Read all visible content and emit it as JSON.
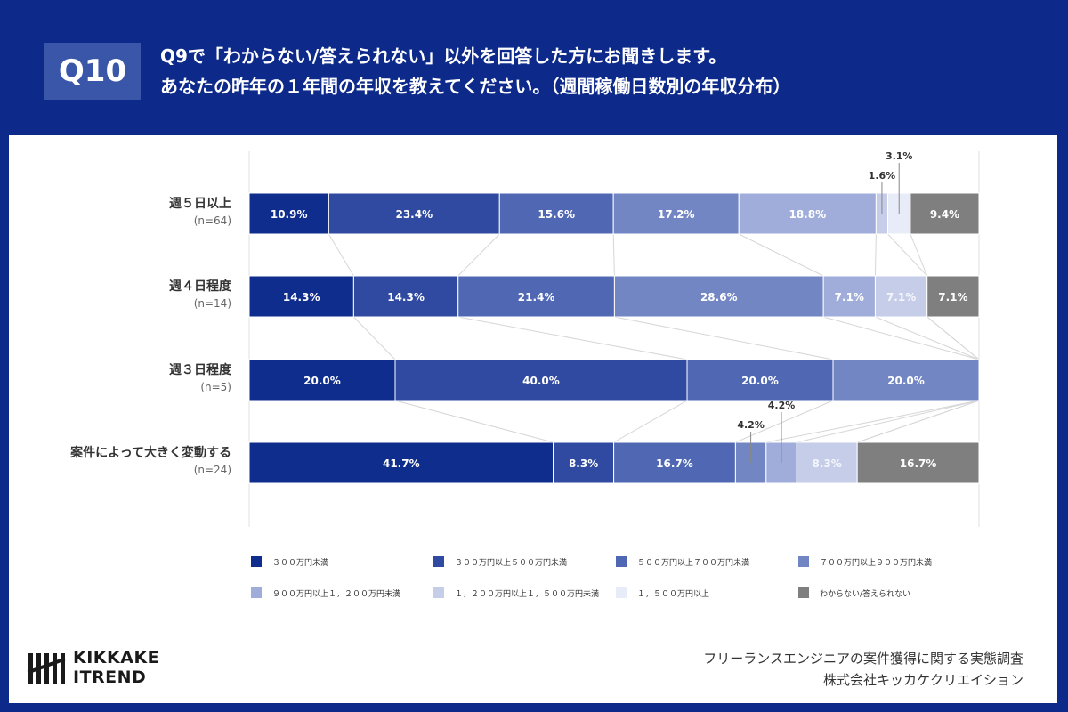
{
  "header": {
    "badge": "Q10",
    "line1": "Q9で「わからない/答えられない」以外を回答した方にお聞きします。",
    "line2": "あなたの昨年の１年間の年収を教えてください。（週間稼働日数別の年収分布）"
  },
  "chart_data": {
    "type": "bar",
    "stacked": true,
    "orientation": "horizontal",
    "normalized_100": true,
    "categories": [
      {
        "label": "週５日以上",
        "n": "(n=64)"
      },
      {
        "label": "週４日程度",
        "n": "(n=14)"
      },
      {
        "label": "週３日程度",
        "n": "(n=5)"
      },
      {
        "label": "案件によって大きく変動する",
        "n": "(n=24)"
      }
    ],
    "series": [
      {
        "name": "３００万円未満",
        "color": "#0f2d8c",
        "values": [
          10.9,
          14.3,
          20.0,
          41.7
        ]
      },
      {
        "name": "３００万円以上５００万円未満",
        "color": "#2f4aa0",
        "values": [
          23.4,
          14.3,
          40.0,
          8.3
        ]
      },
      {
        "name": "５００万円以上７００万円未満",
        "color": "#5068b4",
        "values": [
          15.6,
          21.4,
          20.0,
          16.7
        ]
      },
      {
        "name": "７００万円以上９００万円未満",
        "color": "#7286c4",
        "values": [
          17.2,
          28.6,
          20.0,
          4.2
        ]
      },
      {
        "name": "９００万円以上１，２００万円未満",
        "color": "#a0addb",
        "values": [
          18.8,
          7.1,
          0,
          4.2
        ]
      },
      {
        "name": "１，２００万円以上１，５００万円未満",
        "color": "#c6cde9",
        "values": [
          1.6,
          7.1,
          0,
          8.3
        ]
      },
      {
        "name": "１，５００万円以上",
        "color": "#e8ecf8",
        "values": [
          3.1,
          0,
          0,
          0
        ]
      },
      {
        "name": "わからない/答えられない",
        "color": "#7f7f7f",
        "values": [
          9.4,
          7.1,
          0,
          16.7
        ]
      }
    ],
    "value_labels": [
      [
        "10.9%",
        "23.4%",
        "15.6%",
        "17.2%",
        "18.8%",
        "1.6%",
        "3.1%",
        "9.4%"
      ],
      [
        "14.3%",
        "14.3%",
        "21.4%",
        "28.6%",
        "7.1%",
        "7.1%",
        "",
        "7.1%"
      ],
      [
        "20.0%",
        "40.0%",
        "20.0%",
        "20.0%",
        "",
        "",
        "",
        ""
      ],
      [
        "41.7%",
        "8.3%",
        "16.7%",
        "4.2%",
        "4.2%",
        "8.3%",
        "",
        "16.7%"
      ]
    ],
    "legend_position": "bottom"
  },
  "footer": {
    "logo_line1": "KIKKAKE",
    "logo_line2": "ITREND",
    "survey_title": "フリーランスエンジニアの案件獲得に関する実態調査",
    "company": "株式会社キッカケクリエイション"
  }
}
